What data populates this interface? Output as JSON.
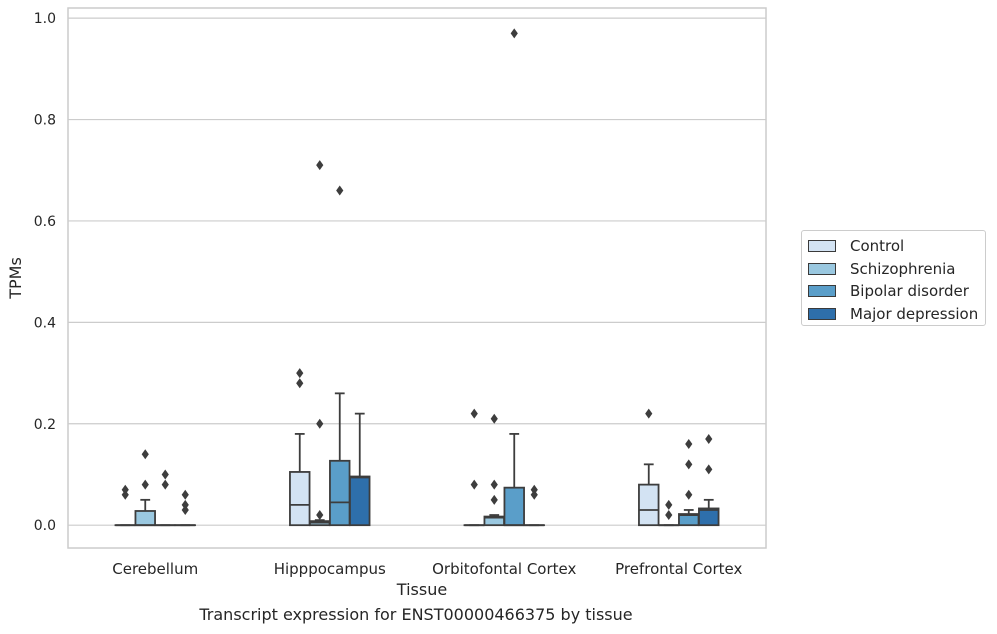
{
  "chart_data": {
    "type": "box",
    "title": "",
    "xlabel": "Tissue",
    "ylabel": "TPMs",
    "caption": "Transcript expression for ENST00000466375 by tissue",
    "ylim": [
      -0.045,
      1.02
    ],
    "yticks": [
      "0.0",
      "0.2",
      "0.4",
      "0.6",
      "0.8",
      "1.0"
    ],
    "grid": "horizontal",
    "legend_position": "right",
    "categories": [
      "Cerebellum",
      "Hipppocampus",
      "Orbitofontal Cortex",
      "Prefrontal Cortex"
    ],
    "series": [
      {
        "name": "Control",
        "color": "#d3e3f3",
        "boxes": [
          {
            "q1": 0,
            "median": 0,
            "q3": 0,
            "whisker_low": 0,
            "whisker_high": 0,
            "outliers": [
              0.06,
              0.07
            ]
          },
          {
            "q1": 0,
            "median": 0.04,
            "q3": 0.105,
            "whisker_low": 0,
            "whisker_high": 0.18,
            "outliers": [
              0.28,
              0.3
            ]
          },
          {
            "q1": 0,
            "median": 0,
            "q3": 0,
            "whisker_low": 0,
            "whisker_high": 0,
            "outliers": [
              0.08,
              0.22
            ]
          },
          {
            "q1": 0,
            "median": 0.03,
            "q3": 0.08,
            "whisker_low": 0,
            "whisker_high": 0.12,
            "outliers": [
              0.22
            ]
          }
        ]
      },
      {
        "name": "Schizophrenia",
        "color": "#9ac8e0",
        "boxes": [
          {
            "q1": 0,
            "median": 0,
            "q3": 0.028,
            "whisker_low": 0,
            "whisker_high": 0.05,
            "outliers": [
              0.08,
              0.14
            ]
          },
          {
            "q1": 0,
            "median": 0.005,
            "q3": 0.008,
            "whisker_low": 0,
            "whisker_high": 0.01,
            "outliers": [
              0.02,
              0.2,
              0.71
            ]
          },
          {
            "q1": 0,
            "median": 0.015,
            "q3": 0.017,
            "whisker_low": 0,
            "whisker_high": 0.02,
            "outliers": [
              0.05,
              0.08,
              0.21
            ]
          },
          {
            "q1": 0,
            "median": 0,
            "q3": 0,
            "whisker_low": 0,
            "whisker_high": 0,
            "outliers": [
              0.02,
              0.04
            ]
          }
        ]
      },
      {
        "name": "Bipolar disorder",
        "color": "#5a9ec9",
        "boxes": [
          {
            "q1": 0,
            "median": 0,
            "q3": 0,
            "whisker_low": 0,
            "whisker_high": 0,
            "outliers": [
              0.08,
              0.1
            ]
          },
          {
            "q1": 0,
            "median": 0.045,
            "q3": 0.127,
            "whisker_low": 0,
            "whisker_high": 0.26,
            "outliers": [
              0.66
            ]
          },
          {
            "q1": 0,
            "median": 0,
            "q3": 0.074,
            "whisker_low": 0,
            "whisker_high": 0.18,
            "outliers": [
              0.97
            ]
          },
          {
            "q1": 0,
            "median": 0.02,
            "q3": 0.022,
            "whisker_low": 0,
            "whisker_high": 0.03,
            "outliers": [
              0.06,
              0.12,
              0.16
            ]
          }
        ]
      },
      {
        "name": "Major depression",
        "color": "#2e6fab",
        "boxes": [
          {
            "q1": 0,
            "median": 0,
            "q3": 0,
            "whisker_low": 0,
            "whisker_high": 0,
            "outliers": [
              0.03,
              0.04,
              0.06
            ]
          },
          {
            "q1": 0,
            "median": 0.094,
            "q3": 0.096,
            "whisker_low": 0,
            "whisker_high": 0.22,
            "outliers": []
          },
          {
            "q1": 0,
            "median": 0,
            "q3": 0,
            "whisker_low": 0,
            "whisker_high": 0,
            "outliers": [
              0.06,
              0.07
            ]
          },
          {
            "q1": 0,
            "median": 0.03,
            "q3": 0.033,
            "whisker_low": 0,
            "whisker_high": 0.05,
            "outliers": [
              0.11,
              0.17
            ]
          }
        ]
      }
    ]
  }
}
